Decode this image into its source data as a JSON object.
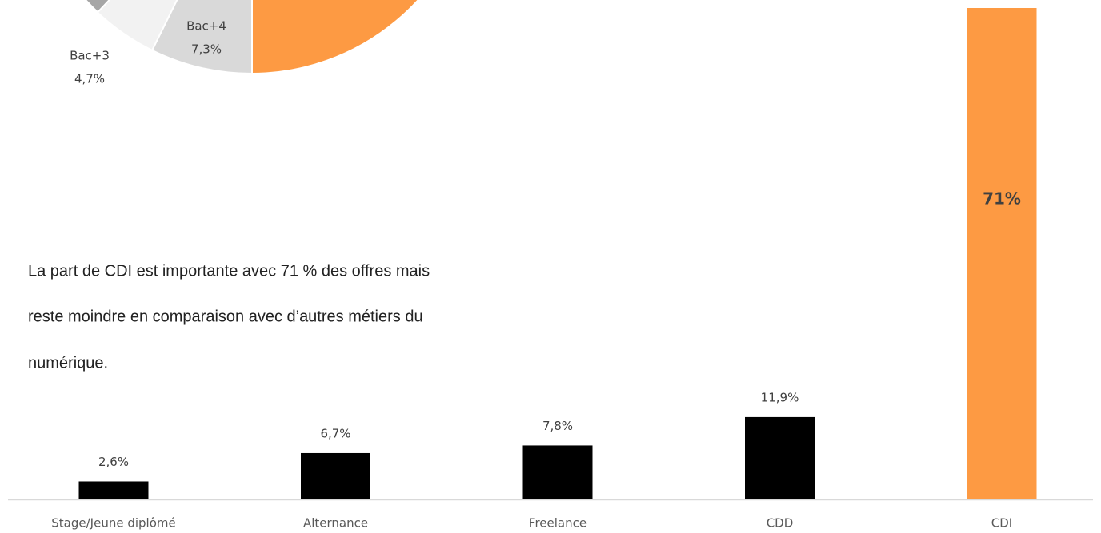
{
  "chart_data": [
    {
      "type": "pie",
      "categories": [
        "Bac+4",
        "Bac+3"
      ],
      "values": [
        7.3,
        4.7
      ],
      "value_labels": [
        "7,3%",
        "4,7%"
      ],
      "colors": [
        "#d9d9d9",
        "#f2f2f2"
      ]
    },
    {
      "type": "bar",
      "categories": [
        "Stage/Jeune diplômé",
        "Alternance",
        "Freelance",
        "CDD",
        "CDI"
      ],
      "values": [
        2.6,
        6.7,
        7.8,
        11.9,
        71
      ],
      "value_labels": [
        "2,6%",
        "6,7%",
        "7,8%",
        "11,9%",
        "71%"
      ],
      "colors": [
        "#000000",
        "#000000",
        "#000000",
        "#000000",
        "#fd9a43"
      ]
    }
  ],
  "paragraph": {
    "lines": [
      "La part de CDI est importante avec 71 % des offres mais",
      "reste moindre en comparaison avec d’autres métiers du",
      "numérique."
    ]
  }
}
